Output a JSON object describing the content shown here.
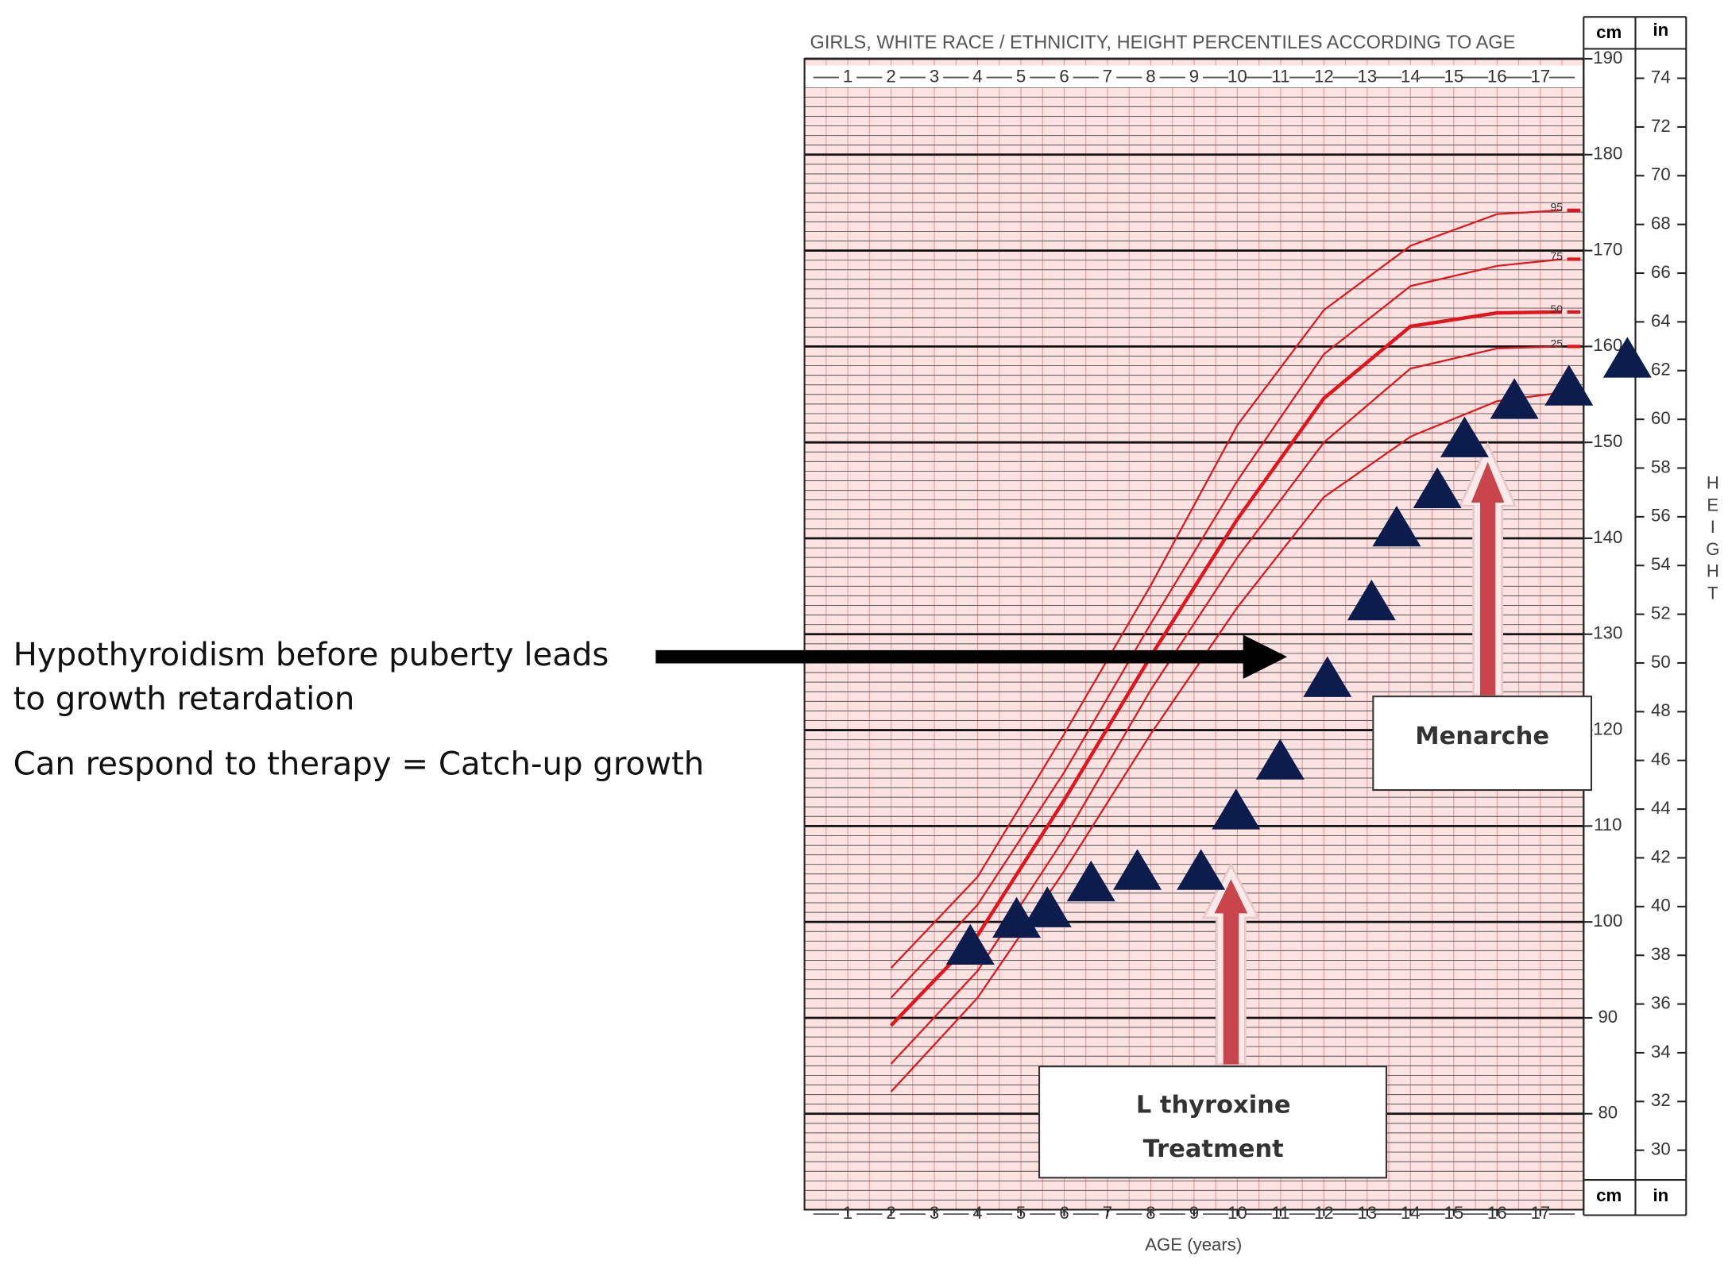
{
  "chart_data": [
    {
      "type": "line",
      "title": "GIRLS, WHITE RACE / ETHNICITY, HEIGHT PERCENTILES ACCORDING TO AGE",
      "x_label": "AGE (years)",
      "y_label": "HEIGHT",
      "y_unit": "cm",
      "y2_unit": "in",
      "xlim": [
        0,
        18
      ],
      "xticks": [
        1,
        2,
        3,
        4,
        5,
        6,
        7,
        8,
        9,
        10,
        11,
        12,
        13,
        14,
        15,
        16,
        17
      ],
      "ylim": [
        70,
        190
      ],
      "yticks": [
        80,
        90,
        100,
        110,
        120,
        130,
        140,
        150,
        160,
        170,
        180,
        190
      ],
      "y2lim": [
        27.56,
        74.8
      ],
      "y2ticks": [
        30,
        32,
        34,
        36,
        38,
        40,
        42,
        44,
        46,
        48,
        50,
        52,
        54,
        56,
        58,
        60,
        62,
        64,
        66,
        68,
        70,
        72,
        74
      ],
      "grid": true,
      "background": "#fde2e2",
      "x": [
        2,
        4,
        6,
        8,
        10,
        12,
        14,
        16,
        17.5
      ],
      "series": [
        {
          "name": "95",
          "color": "#e3141b",
          "line_width": 1.6,
          "values": [
            95.2,
            104.7,
            119.6,
            135.1,
            151.8,
            163.8,
            170.5,
            173.8,
            174.2
          ]
        },
        {
          "name": "75",
          "color": "#e3141b",
          "line_width": 1.6,
          "values": [
            92.1,
            101.8,
            115.6,
            131.1,
            146.0,
            159.2,
            166.3,
            168.4,
            169.1
          ]
        },
        {
          "name": "50",
          "color": "#e3141b",
          "line_width": 3.2,
          "values": [
            89.2,
            98.6,
            112.7,
            127.7,
            142.0,
            154.6,
            162.1,
            163.5,
            163.6
          ]
        },
        {
          "name": "25",
          "color": "#e3141b",
          "line_width": 1.6,
          "values": [
            85.2,
            94.9,
            108.7,
            124.2,
            138.0,
            150.0,
            157.7,
            159.8,
            160.0
          ]
        },
        {
          "color": "#e3141b",
          "line_width": 1.6,
          "values": [
            82.3,
            92.1,
            105.3,
            119.6,
            132.8,
            144.3,
            150.6,
            154.3,
            155.2
          ]
        }
      ],
      "annotations": {
        "left_text": [
          "Hypothyroidism before puberty leads",
          "to growth retardation",
          "Can respond to therapy = Catch-up growth"
        ],
        "treatment_box": [
          "L thyroxine",
          "Treatment"
        ],
        "menarche_box": "Menarche"
      }
    },
    {
      "type": "scatter",
      "marker": "triangle",
      "color": "#0c1d4d",
      "x": [
        3.83,
        4.9,
        5.61,
        6.62,
        7.69,
        9.16,
        9.97,
        10.99,
        12.08,
        13.1,
        13.68,
        14.62,
        15.25,
        16.4,
        17.66,
        19.01
      ],
      "values": [
        97.5,
        100.3,
        101.4,
        104.1,
        105.3,
        105.3,
        111.6,
        116.8,
        125.4,
        133.4,
        141.1,
        145.1,
        150.4,
        154.4,
        155.8,
        158.7
      ]
    }
  ]
}
